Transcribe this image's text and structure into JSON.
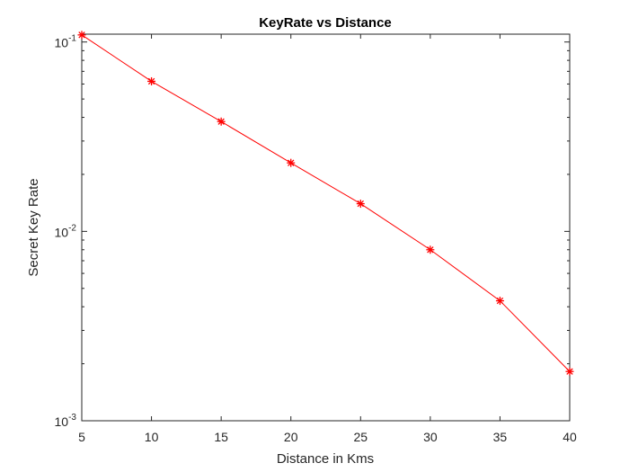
{
  "chart_data": {
    "type": "line",
    "title": "KeyRate vs Distance",
    "xlabel": "Distance in Kms",
    "ylabel": "Secret Key Rate",
    "xlim": [
      5,
      40
    ],
    "ylim": [
      0.001,
      0.11
    ],
    "yscale": "log",
    "xticks": [
      "5",
      "10",
      "15",
      "20",
      "25",
      "30",
      "35",
      "40"
    ],
    "yticks": [
      {
        "base": "10",
        "exp": "-1",
        "value": 0.1
      },
      {
        "base": "10",
        "exp": "-2",
        "value": 0.01
      },
      {
        "base": "10",
        "exp": "-3",
        "value": 0.001
      }
    ],
    "grid": false,
    "series": [
      {
        "color": "#ff0000",
        "marker": "asterisk",
        "x": [
          5,
          10,
          15,
          20,
          25,
          30,
          35,
          40
        ],
        "y": [
          0.109,
          0.062,
          0.038,
          0.023,
          0.014,
          0.008,
          0.0043,
          0.00182
        ]
      }
    ]
  }
}
